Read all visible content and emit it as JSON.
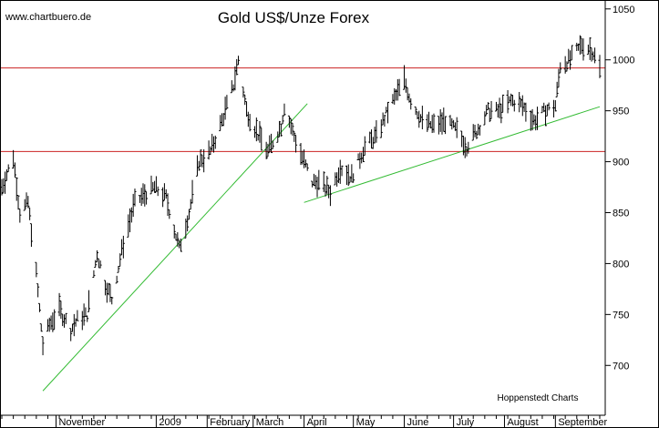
{
  "header": {
    "watermark": "www.chartbuero.de",
    "title": "Gold US$/Unze Forex",
    "credit": "Hoppenstedt Charts"
  },
  "colors": {
    "background": "#ffffff",
    "bars": "#000000",
    "resistance_lines": "#cc2222",
    "trend_lines": "#33bb33",
    "axis": "#000000"
  },
  "chart_data": {
    "type": "ohlc",
    "title": "Gold US$/Unze Forex",
    "xlabel": "",
    "ylabel": "",
    "ylim": [
      650,
      1055
    ],
    "y_ticks": [
      700,
      750,
      800,
      850,
      900,
      950,
      1000,
      1050
    ],
    "y_axis_side": "right",
    "x_range": [
      "2008-09-29",
      "2009-09-28"
    ],
    "x_labels": [
      {
        "label": "November",
        "date": "2008-11-01"
      },
      {
        "label": "2009",
        "date": "2009-01-01"
      },
      {
        "label": "February",
        "date": "2009-02-01"
      },
      {
        "label": "March",
        "date": "2009-03-01"
      },
      {
        "label": "April",
        "date": "2009-04-01"
      },
      {
        "label": "May",
        "date": "2009-05-01"
      },
      {
        "label": "June",
        "date": "2009-06-01"
      },
      {
        "label": "July",
        "date": "2009-07-01"
      },
      {
        "label": "August",
        "date": "2009-08-01"
      },
      {
        "label": "September",
        "date": "2009-09-01"
      }
    ],
    "grid": false,
    "series_path": [
      [
        "2008-09-29",
        875
      ],
      [
        "2008-10-06",
        905
      ],
      [
        "2008-10-10",
        850
      ],
      [
        "2008-10-15",
        860
      ],
      [
        "2008-10-20",
        790
      ],
      [
        "2008-10-24",
        720
      ],
      [
        "2008-10-28",
        740
      ],
      [
        "2008-11-03",
        755
      ],
      [
        "2008-11-10",
        735
      ],
      [
        "2008-11-14",
        745
      ],
      [
        "2008-11-20",
        750
      ],
      [
        "2008-11-26",
        810
      ],
      [
        "2008-12-01",
        780
      ],
      [
        "2008-12-05",
        765
      ],
      [
        "2008-12-12",
        820
      ],
      [
        "2008-12-19",
        860
      ],
      [
        "2008-12-31",
        875
      ],
      [
        "2009-01-07",
        865
      ],
      [
        "2009-01-15",
        815
      ],
      [
        "2009-01-21",
        850
      ],
      [
        "2009-01-27",
        900
      ],
      [
        "2009-02-03",
        910
      ],
      [
        "2009-02-10",
        940
      ],
      [
        "2009-02-17",
        975
      ],
      [
        "2009-02-20",
        1000
      ],
      [
        "2009-02-25",
        950
      ],
      [
        "2009-03-03",
        930
      ],
      [
        "2009-03-10",
        910
      ],
      [
        "2009-03-18",
        935
      ],
      [
        "2009-03-20",
        955
      ],
      [
        "2009-03-27",
        920
      ],
      [
        "2009-04-06",
        880
      ],
      [
        "2009-04-10",
        880
      ],
      [
        "2009-04-17",
        870
      ],
      [
        "2009-04-23",
        895
      ],
      [
        "2009-04-30",
        885
      ],
      [
        "2009-05-08",
        915
      ],
      [
        "2009-05-15",
        925
      ],
      [
        "2009-05-22",
        950
      ],
      [
        "2009-06-01",
        980
      ],
      [
        "2009-06-05",
        960
      ],
      [
        "2009-06-12",
        940
      ],
      [
        "2009-06-19",
        935
      ],
      [
        "2009-06-26",
        940
      ],
      [
        "2009-07-03",
        930
      ],
      [
        "2009-07-09",
        915
      ],
      [
        "2009-07-15",
        930
      ],
      [
        "2009-07-22",
        950
      ],
      [
        "2009-07-29",
        950
      ],
      [
        "2009-08-05",
        960
      ],
      [
        "2009-08-12",
        955
      ],
      [
        "2009-08-19",
        940
      ],
      [
        "2009-08-26",
        950
      ],
      [
        "2009-09-01",
        955
      ],
      [
        "2009-09-04",
        995
      ],
      [
        "2009-09-10",
        1000
      ],
      [
        "2009-09-17",
        1015
      ],
      [
        "2009-09-23",
        1010
      ],
      [
        "2009-09-28",
        992
      ]
    ],
    "horizontal_lines": [
      {
        "name": "resistance-upper",
        "value": 992
      },
      {
        "name": "support-lower",
        "value": 910
      }
    ],
    "trend_lines": [
      {
        "name": "uptrend-1",
        "from": [
          "2008-10-24",
          675
        ],
        "to": [
          "2009-04-03",
          957
        ]
      },
      {
        "name": "uptrend-2",
        "from": [
          "2009-04-01",
          860
        ],
        "to": [
          "2009-09-28",
          954
        ]
      }
    ]
  }
}
